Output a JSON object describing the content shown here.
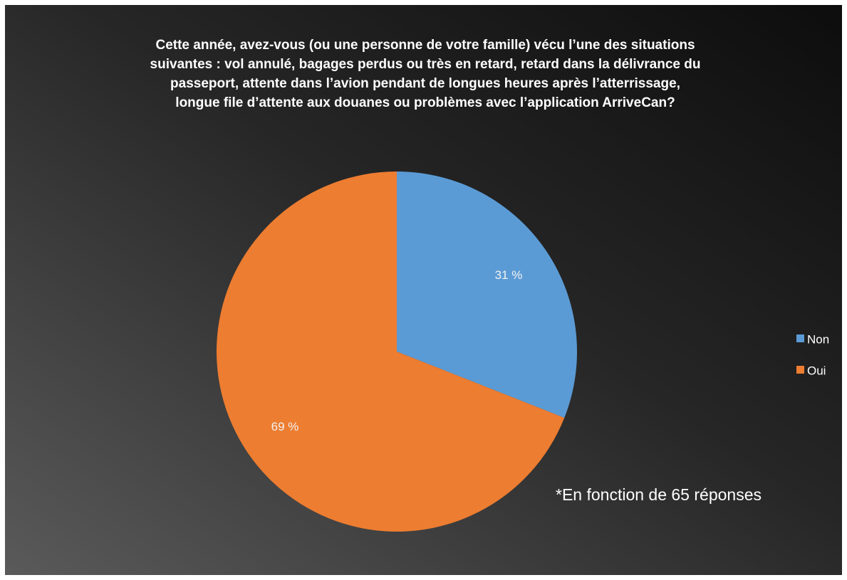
{
  "chart_data": {
    "type": "pie",
    "title": "Cette année, avez-vous (ou une personne de votre famille) vécu l’une des situations suivantes : vol annulé, bagages perdus ou très en retard, retard dans la délivrance du passeport, attente dans l’avion pendant de longues heures après l’atterrissage, longue file d’attente aux douanes ou problèmes avec l’application ArriveCan?",
    "categories": [
      "Non",
      "Oui"
    ],
    "values": [
      31,
      69
    ],
    "value_labels": [
      "31 %",
      "69 %"
    ],
    "colors": [
      "#5b9bd5",
      "#ed7d31"
    ],
    "legend": "right",
    "annotation": "*En fonction de 65 réponses"
  }
}
